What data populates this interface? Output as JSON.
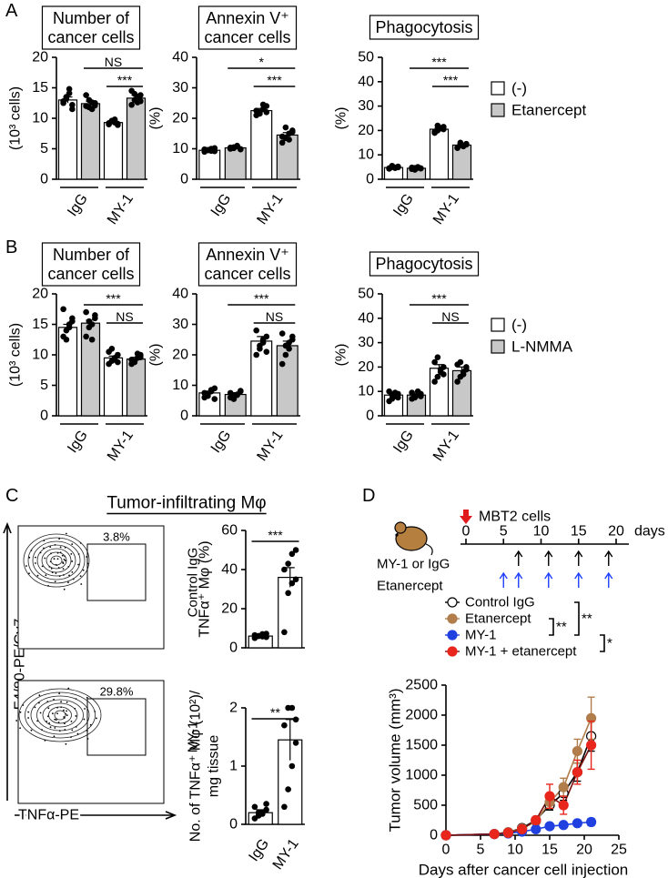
{
  "chart_data": [
    {
      "type": "bar",
      "panel": "A",
      "title": [
        "Number of",
        "cancer cells"
      ],
      "ylabel": "(10³ cells)",
      "ylim": [
        0,
        20
      ],
      "yticks": [
        0,
        5,
        10,
        15,
        20
      ],
      "categories": [
        "IgG",
        "MY-1"
      ],
      "series": [
        {
          "color": "#ffffff",
          "values": [
            13.0,
            9.3
          ],
          "errors": [
            0.5,
            0.2
          ],
          "points": [
            [
              12.5,
              13.2,
              14.1,
              11.5,
              12.8,
              13.5,
              14.8,
              12.2
            ],
            [
              9.0,
              9.5,
              9.8,
              8.9,
              9.2,
              9.6,
              9.3,
              9.1
            ]
          ]
        },
        {
          "color": "#c8c8c8",
          "values": [
            12.4,
            13.3
          ],
          "errors": [
            0.4,
            0.5
          ],
          "points": [
            [
              12.0,
              13.0,
              11.5,
              12.5,
              13.8,
              11.8,
              12.6,
              12.1
            ],
            [
              12.2,
              14.0,
              13.5,
              12.8,
              14.5,
              13.0,
              12.6,
              13.8
            ]
          ]
        }
      ],
      "comparisons": [
        {
          "label": "NS",
          "bars": [
            1,
            3
          ]
        },
        {
          "label": "***",
          "bars": [
            2,
            3
          ]
        }
      ]
    },
    {
      "type": "bar",
      "title": [
        "Annexin V⁺",
        "cancer cells"
      ],
      "ylabel": "(%)",
      "ylim": [
        0,
        40
      ],
      "yticks": [
        0,
        10,
        20,
        30,
        40
      ],
      "categories": [
        "IgG",
        "MY-1"
      ],
      "series": [
        {
          "color": "#ffffff",
          "values": [
            9.5,
            22.5
          ],
          "errors": [
            0.3,
            0.7
          ],
          "points": [
            [
              9,
              9.5,
              10,
              9.2,
              9.8,
              9.6,
              9.3,
              10.2
            ],
            [
              21,
              22,
              23,
              24,
              22.5,
              21.5,
              24.5,
              22
            ]
          ]
        },
        {
          "color": "#c8c8c8",
          "values": [
            10.3,
            14.5
          ],
          "errors": [
            0.3,
            0.8
          ],
          "points": [
            [
              10,
              10.5,
              11,
              9.8,
              10.4,
              10.2,
              10.8,
              9.9
            ],
            [
              12,
              13.5,
              15,
              16,
              14,
              17,
              13,
              15.5
            ]
          ]
        }
      ],
      "comparisons": [
        {
          "label": "*",
          "bars": [
            1,
            3
          ]
        },
        {
          "label": "***",
          "bars": [
            2,
            3
          ]
        }
      ]
    },
    {
      "type": "bar",
      "title": [
        "Phagocytosis"
      ],
      "ylabel": "(%)",
      "ylim": [
        0,
        50
      ],
      "yticks": [
        0,
        10,
        20,
        30,
        40,
        50
      ],
      "categories": [
        "IgG",
        "MY-1"
      ],
      "legend": "right",
      "series": [
        {
          "name": "(-)",
          "color": "#ffffff",
          "values": [
            4.8,
            20.5
          ],
          "errors": [
            0.2,
            0.5
          ],
          "points": [
            [
              4.5,
              5,
              4.8,
              5.2,
              4.3,
              5.5,
              4.6,
              4.9
            ],
            [
              19.5,
              20,
              21,
              20.5,
              19,
              22,
              20.8,
              21.5
            ]
          ]
        },
        {
          "name": "Etanercept",
          "color": "#c8c8c8",
          "values": [
            4.5,
            14
          ],
          "errors": [
            0.2,
            0.4
          ],
          "points": [
            [
              4.2,
              4.6,
              5,
              4.4,
              4.8,
              3.9,
              4.7,
              4.5
            ],
            [
              13,
              14,
              13.5,
              14.5,
              12.8,
              15,
              13.8,
              14.2
            ]
          ]
        }
      ],
      "comparisons": [
        {
          "label": "***",
          "bars": [
            1,
            3
          ]
        },
        {
          "label": "***",
          "bars": [
            2,
            3
          ]
        }
      ]
    },
    {
      "type": "bar",
      "panel": "B",
      "title": [
        "Number of",
        "cancer cells"
      ],
      "ylabel": "(10³ cells)",
      "ylim": [
        0,
        20
      ],
      "yticks": [
        0,
        5,
        10,
        15,
        20
      ],
      "categories": [
        "IgG",
        "MY-1"
      ],
      "series": [
        {
          "color": "#ffffff",
          "values": [
            14.5,
            9.5
          ],
          "errors": [
            0.5,
            0.3
          ],
          "points": [
            [
              13,
              14,
              15,
              16,
              17.5,
              12.5,
              14.5,
              15.5
            ],
            [
              8.5,
              9,
              9.5,
              10,
              10.5,
              11,
              9.2,
              8.8
            ]
          ]
        },
        {
          "color": "#c8c8c8",
          "values": [
            15.2,
            9.3
          ],
          "errors": [
            0.5,
            0.3
          ],
          "points": [
            [
              13,
              14.5,
              15,
              16,
              17,
              15.5,
              12.5,
              16.5
            ],
            [
              8.5,
              9,
              9.5,
              10,
              9.2,
              8.8,
              10.2,
              9.6
            ]
          ]
        }
      ],
      "comparisons": [
        {
          "label": "***",
          "bars": [
            1,
            3
          ]
        },
        {
          "label": "NS",
          "bars": [
            2,
            3
          ]
        }
      ]
    },
    {
      "type": "bar",
      "title": [
        "Annexin V⁺",
        "cancer cells"
      ],
      "ylabel": "(%)",
      "ylim": [
        0,
        40
      ],
      "yticks": [
        0,
        10,
        20,
        30,
        40
      ],
      "categories": [
        "IgG",
        "MY-1"
      ],
      "series": [
        {
          "color": "#ffffff",
          "values": [
            7.5,
            24.5
          ],
          "errors": [
            0.6,
            1.5
          ],
          "points": [
            [
              6,
              7,
              8,
              9,
              7.5,
              6.5,
              8.5,
              5.5
            ],
            [
              20,
              22,
              24,
              26,
              28,
              23,
              25,
              21
            ]
          ]
        },
        {
          "color": "#c8c8c8",
          "values": [
            7,
            23
          ],
          "errors": [
            0.6,
            1.5
          ],
          "points": [
            [
              6,
              6.5,
              7,
              8,
              7.5,
              5.5,
              6.8,
              8.2
            ],
            [
              17,
              20,
              22,
              25,
              27,
              23,
              24,
              26
            ]
          ]
        }
      ],
      "comparisons": [
        {
          "label": "***",
          "bars": [
            1,
            3
          ]
        },
        {
          "label": "NS",
          "bars": [
            2,
            3
          ]
        }
      ]
    },
    {
      "type": "bar",
      "title": [
        "Phagocytosis"
      ],
      "ylabel": "(%)",
      "ylim": [
        0,
        50
      ],
      "yticks": [
        0,
        10,
        20,
        30,
        40,
        50
      ],
      "categories": [
        "IgG",
        "MY-1"
      ],
      "legend": "right",
      "series": [
        {
          "name": "(-)",
          "color": "#ffffff",
          "values": [
            8.5,
            19.5
          ],
          "errors": [
            0.6,
            1.5
          ],
          "points": [
            [
              6,
              7,
              8,
              9,
              10,
              8.5,
              9.5,
              7.5
            ],
            [
              14,
              16,
              18,
              20,
              22,
              24,
              19,
              17
            ]
          ]
        },
        {
          "name": "L-NMMA",
          "color": "#c8c8c8",
          "values": [
            8.5,
            18.5
          ],
          "errors": [
            0.5,
            1.5
          ],
          "points": [
            [
              7,
              8,
              8.5,
              9,
              9.5,
              7.5,
              10,
              8
            ],
            [
              14,
              16,
              17,
              19,
              21,
              22,
              18,
              20
            ]
          ]
        }
      ],
      "comparisons": [
        {
          "label": "***",
          "bars": [
            1,
            3
          ]
        },
        {
          "label": "NS",
          "bars": [
            2,
            3
          ]
        }
      ]
    },
    {
      "type": "flow",
      "panel": "C",
      "title": "Tumor-infiltrating Mφ",
      "ylabel": "F4/80-PE/Cy7",
      "xlabel": "TNFα-PE",
      "plots": [
        {
          "label": "Control IgG",
          "gate": "3.8%"
        },
        {
          "label": "MY-1",
          "gate": "29.8%"
        }
      ]
    },
    {
      "type": "bar",
      "title": [],
      "ylabel": [
        "TNFα⁺ Mφ (%)"
      ],
      "ylim": [
        0,
        60
      ],
      "yticks": [
        0,
        20,
        40,
        60
      ],
      "series": [
        {
          "color": "#ffffff",
          "values": [
            6,
            36
          ],
          "errors": [
            0.5,
            5
          ],
          "points": [
            [
              5,
              6,
              7,
              5.5,
              6.5,
              6,
              5.8,
              7.2
            ],
            [
              8,
              28,
              33,
              35,
              40,
              43,
              48,
              50
            ]
          ]
        }
      ],
      "comparisons": [
        {
          "label": "***",
          "bars": [
            0,
            1
          ]
        }
      ]
    },
    {
      "type": "bar",
      "title": [],
      "ylabel": [
        "No. of TNFα⁺ Mφ (10²)/",
        "mg tissue"
      ],
      "ylim": [
        0,
        2
      ],
      "yticks": [
        0,
        1,
        2
      ],
      "categories": [
        "IgG",
        "MY-1"
      ],
      "series": [
        {
          "color": "#ffffff",
          "values": [
            0.2,
            1.45
          ],
          "errors": [
            0.05,
            0.35
          ],
          "points": [
            [
              0.1,
              0.15,
              0.2,
              0.25,
              0.3,
              0.2,
              0.18,
              0.35
            ],
            [
              0.3,
              0.6,
              1.0,
              1.4,
              1.7,
              2.0,
              2.0,
              1.8
            ]
          ]
        }
      ],
      "comparisons": [
        {
          "label": "**",
          "bars": [
            0,
            1
          ]
        }
      ]
    },
    {
      "type": "timeline",
      "panel": "D",
      "start_label": "MBT2 cells",
      "unit": "days",
      "xlim": [
        0,
        20
      ],
      "ticks": [
        0,
        5,
        10,
        15,
        20
      ],
      "schedules": [
        {
          "name": "MY-1 or IgG",
          "color": "#000000",
          "days": [
            7,
            11,
            15,
            19
          ]
        },
        {
          "name": "Etanercept",
          "color": "#1f3fff",
          "days": [
            5,
            7,
            11,
            15,
            19
          ]
        }
      ]
    },
    {
      "type": "line",
      "xlabel": "Days after cancer cell injection",
      "ylabel": "Tumor volume (mm³)",
      "legend": "above",
      "xlim": [
        0,
        25
      ],
      "xticks": [
        0,
        5,
        10,
        15,
        20,
        25
      ],
      "ylim": [
        0,
        2500
      ],
      "yticks": [
        0,
        500,
        1000,
        1500,
        2000,
        2500
      ],
      "x": [
        0,
        7,
        9,
        11,
        13,
        15,
        17,
        19,
        21
      ],
      "series": [
        {
          "name": "Control IgG",
          "color": "#ffffff",
          "line_color": "#000000",
          "values": [
            0,
            20,
            50,
            120,
            250,
            500,
            700,
            1050,
            1650
          ],
          "errors": [
            0,
            10,
            15,
            30,
            50,
            80,
            120,
            150,
            250
          ]
        },
        {
          "name": "Etanercept",
          "color": "#b07d4b",
          "line_color": "#b07d4b",
          "values": [
            0,
            20,
            50,
            110,
            230,
            550,
            800,
            1400,
            1950
          ],
          "errors": [
            0,
            10,
            15,
            30,
            50,
            100,
            150,
            200,
            350
          ]
        },
        {
          "name": "MY-1",
          "color": "#2040e0",
          "line_color": "#2040e0",
          "values": [
            0,
            20,
            30,
            60,
            100,
            150,
            170,
            200,
            220
          ],
          "errors": [
            0,
            5,
            10,
            15,
            20,
            30,
            40,
            50,
            60
          ]
        },
        {
          "name": "MY-1 + etanercept",
          "color": "#e8261c",
          "line_color": "#7a0d0d",
          "values": [
            0,
            20,
            40,
            100,
            250,
            650,
            500,
            1050,
            1500
          ],
          "errors": [
            0,
            10,
            15,
            30,
            60,
            200,
            150,
            200,
            400
          ]
        }
      ],
      "comparisons": [
        {
          "label": "**",
          "series": [
            1,
            2
          ]
        },
        {
          "label": "**",
          "series": [
            0,
            2
          ]
        },
        {
          "label": "*",
          "series": [
            2,
            3
          ]
        }
      ]
    }
  ]
}
